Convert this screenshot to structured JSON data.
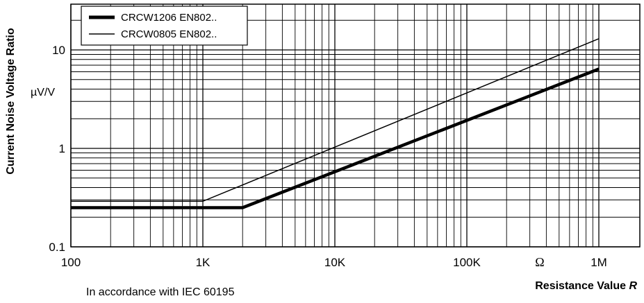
{
  "chart_data": {
    "type": "line",
    "x_scale": "log",
    "y_scale": "log",
    "xlim": [
      100,
      1000000
    ],
    "ylim": [
      0.1,
      50
    ],
    "grid": true,
    "legend_position": "top-left",
    "ylabel": "Current Noise Voltage Ratio",
    "yunit": "µV/V",
    "xlabel_prefix": "Resistance Value ",
    "xlabel_var": "R",
    "xunit": "Ω",
    "note": "In accordance with IEC 60195",
    "x_ticks": [
      {
        "value": 100,
        "label": "100"
      },
      {
        "value": 1000,
        "label": "1K"
      },
      {
        "value": 10000,
        "label": "10K"
      },
      {
        "value": 100000,
        "label": "100K"
      },
      {
        "value": 1000000,
        "label": "1M"
      }
    ],
    "y_ticks": [
      {
        "value": 0.1,
        "label": "0.1"
      },
      {
        "value": 1,
        "label": "1"
      },
      {
        "value": 10,
        "label": "10"
      }
    ],
    "series": [
      {
        "name": "CRCW1206 EN802..",
        "line_weight": "thick",
        "color": "#000000",
        "points": [
          [
            100,
            0.25
          ],
          [
            2000,
            0.25
          ],
          [
            1000000,
            6.4
          ]
        ]
      },
      {
        "name": "CRCW0805 EN802..",
        "line_weight": "thin",
        "color": "#000000",
        "points": [
          [
            100,
            0.29
          ],
          [
            1000,
            0.29
          ],
          [
            1000000,
            13.0
          ]
        ]
      }
    ]
  }
}
